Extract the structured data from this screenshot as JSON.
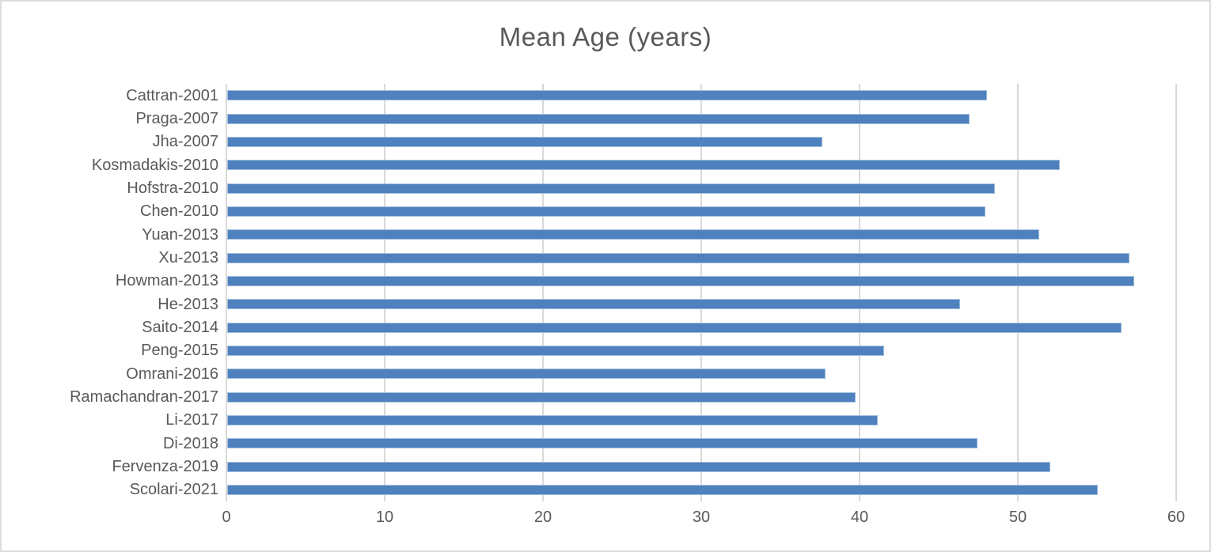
{
  "chart_data": {
    "type": "bar",
    "orientation": "horizontal",
    "title": "Mean Age (years)",
    "categories": [
      "Cattran-2001",
      "Praga-2007",
      "Jha-2007",
      "Kosmadakis-2010",
      "Hofstra-2010",
      "Chen-2010",
      "Yuan-2013",
      "Xu-2013",
      "Howman-2013",
      "He-2013",
      "Saito-2014",
      "Peng-2015",
      "Omrani-2016",
      "Ramachandran-2017",
      "Li-2017",
      "Di-2018",
      "Fervenza-2019",
      "Scolari-2021"
    ],
    "values": [
      48.0,
      46.9,
      37.6,
      52.6,
      48.5,
      47.9,
      51.3,
      57.0,
      57.3,
      46.3,
      56.5,
      41.5,
      37.8,
      39.7,
      41.1,
      47.4,
      52.0,
      55.0
    ],
    "xlabel": "",
    "ylabel": "",
    "xlim": [
      0,
      60
    ],
    "xticks": [
      0,
      10,
      20,
      30,
      40,
      50,
      60
    ],
    "grid": "vertical-only",
    "legend": "none",
    "colors": {
      "bar_fill": "#4e81bd",
      "bar_border": "#a3bfdf",
      "gridline": "#d9d9d9",
      "text": "#595959",
      "frame_border": "#dcdcdc",
      "background": "#ffffff"
    }
  }
}
